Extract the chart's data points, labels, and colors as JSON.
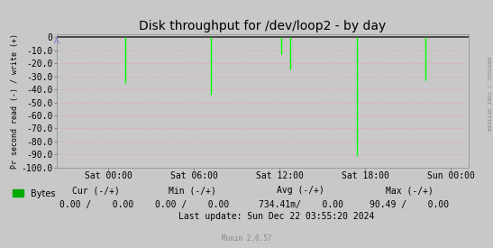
{
  "title": "Disk throughput for /dev/loop2 - by day",
  "ylabel": "Pr second read (-) / write (+)",
  "ylim": [
    -100,
    2
  ],
  "yticks": [
    0,
    -10,
    -20,
    -30,
    -40,
    -50,
    -60,
    -70,
    -80,
    -90,
    -100
  ],
  "bg_color": "#c8c8c8",
  "plot_bg_color": "#c8c8c8",
  "grid_color": "#ff8888",
  "spike_color": "#00ff00",
  "top_line_color": "#333333",
  "bottom_arrow_color": "#8888cc",
  "sidebar_text": "RRDTOOL / TOBI OETIKER",
  "sidebar_color": "#888888",
  "xlabel_ticks": [
    "Sat 00:00",
    "Sat 06:00",
    "Sat 12:00",
    "Sat 18:00",
    "Sun 00:00"
  ],
  "xlabel_tick_positions": [
    0.125,
    0.333,
    0.542,
    0.75,
    0.958
  ],
  "spike_pairs": [
    [
      0.167,
      -35
    ],
    [
      0.375,
      -44
    ],
    [
      0.545,
      -13
    ],
    [
      0.567,
      -25
    ],
    [
      0.73,
      -91
    ],
    [
      0.895,
      -33
    ]
  ],
  "legend_label": "Bytes",
  "legend_color": "#00aa00",
  "footer_cur_label": "Cur (-/+)",
  "footer_min_label": "Min (-/+)",
  "footer_avg_label": "Avg (-/+)",
  "footer_max_label": "Max (-/+)",
  "footer_cur": "0.00 /    0.00",
  "footer_min": "0.00 /    0.00",
  "footer_avg": "734.41m/    0.00",
  "footer_max": "90.49 /    0.00",
  "footer_update": "Last update: Sun Dec 22 03:55:20 2024",
  "munin_label": "Munin 2.0.57",
  "title_fontsize": 10,
  "axis_fontsize": 7,
  "footer_fontsize": 7
}
